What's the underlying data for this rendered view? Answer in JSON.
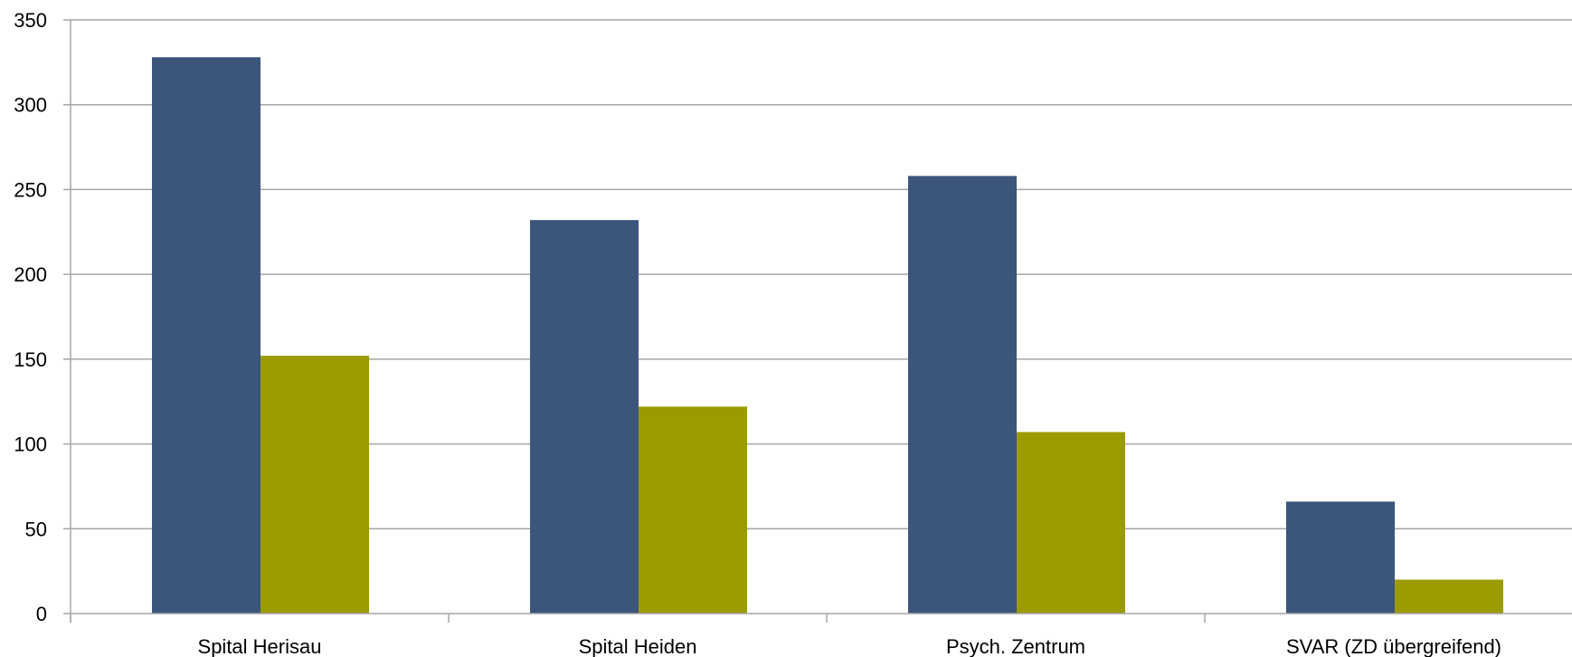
{
  "chart_data": {
    "type": "bar",
    "title": "",
    "xlabel": "",
    "ylabel": "",
    "categories": [
      "Spital Herisau",
      "Spital Heiden",
      "Psych. Zentrum",
      "SVAR (ZD übergreifend)"
    ],
    "series": [
      {
        "color": "#3b557b",
        "values": [
          328,
          232,
          258,
          66
        ]
      },
      {
        "color": "#9b9b00",
        "values": [
          152,
          122,
          107,
          20
        ]
      }
    ],
    "ylim": [
      0,
      350
    ],
    "yticks": [
      0,
      50,
      100,
      150,
      200,
      250,
      300,
      350
    ],
    "ytick_labels": [
      "0",
      "50",
      "100",
      "150",
      "200",
      "250",
      "300",
      "350"
    ],
    "grid": true,
    "legend": "none",
    "colors": {
      "grid": "#a6a6a6",
      "axis": "#a6a6a6",
      "text": "#000000"
    }
  }
}
